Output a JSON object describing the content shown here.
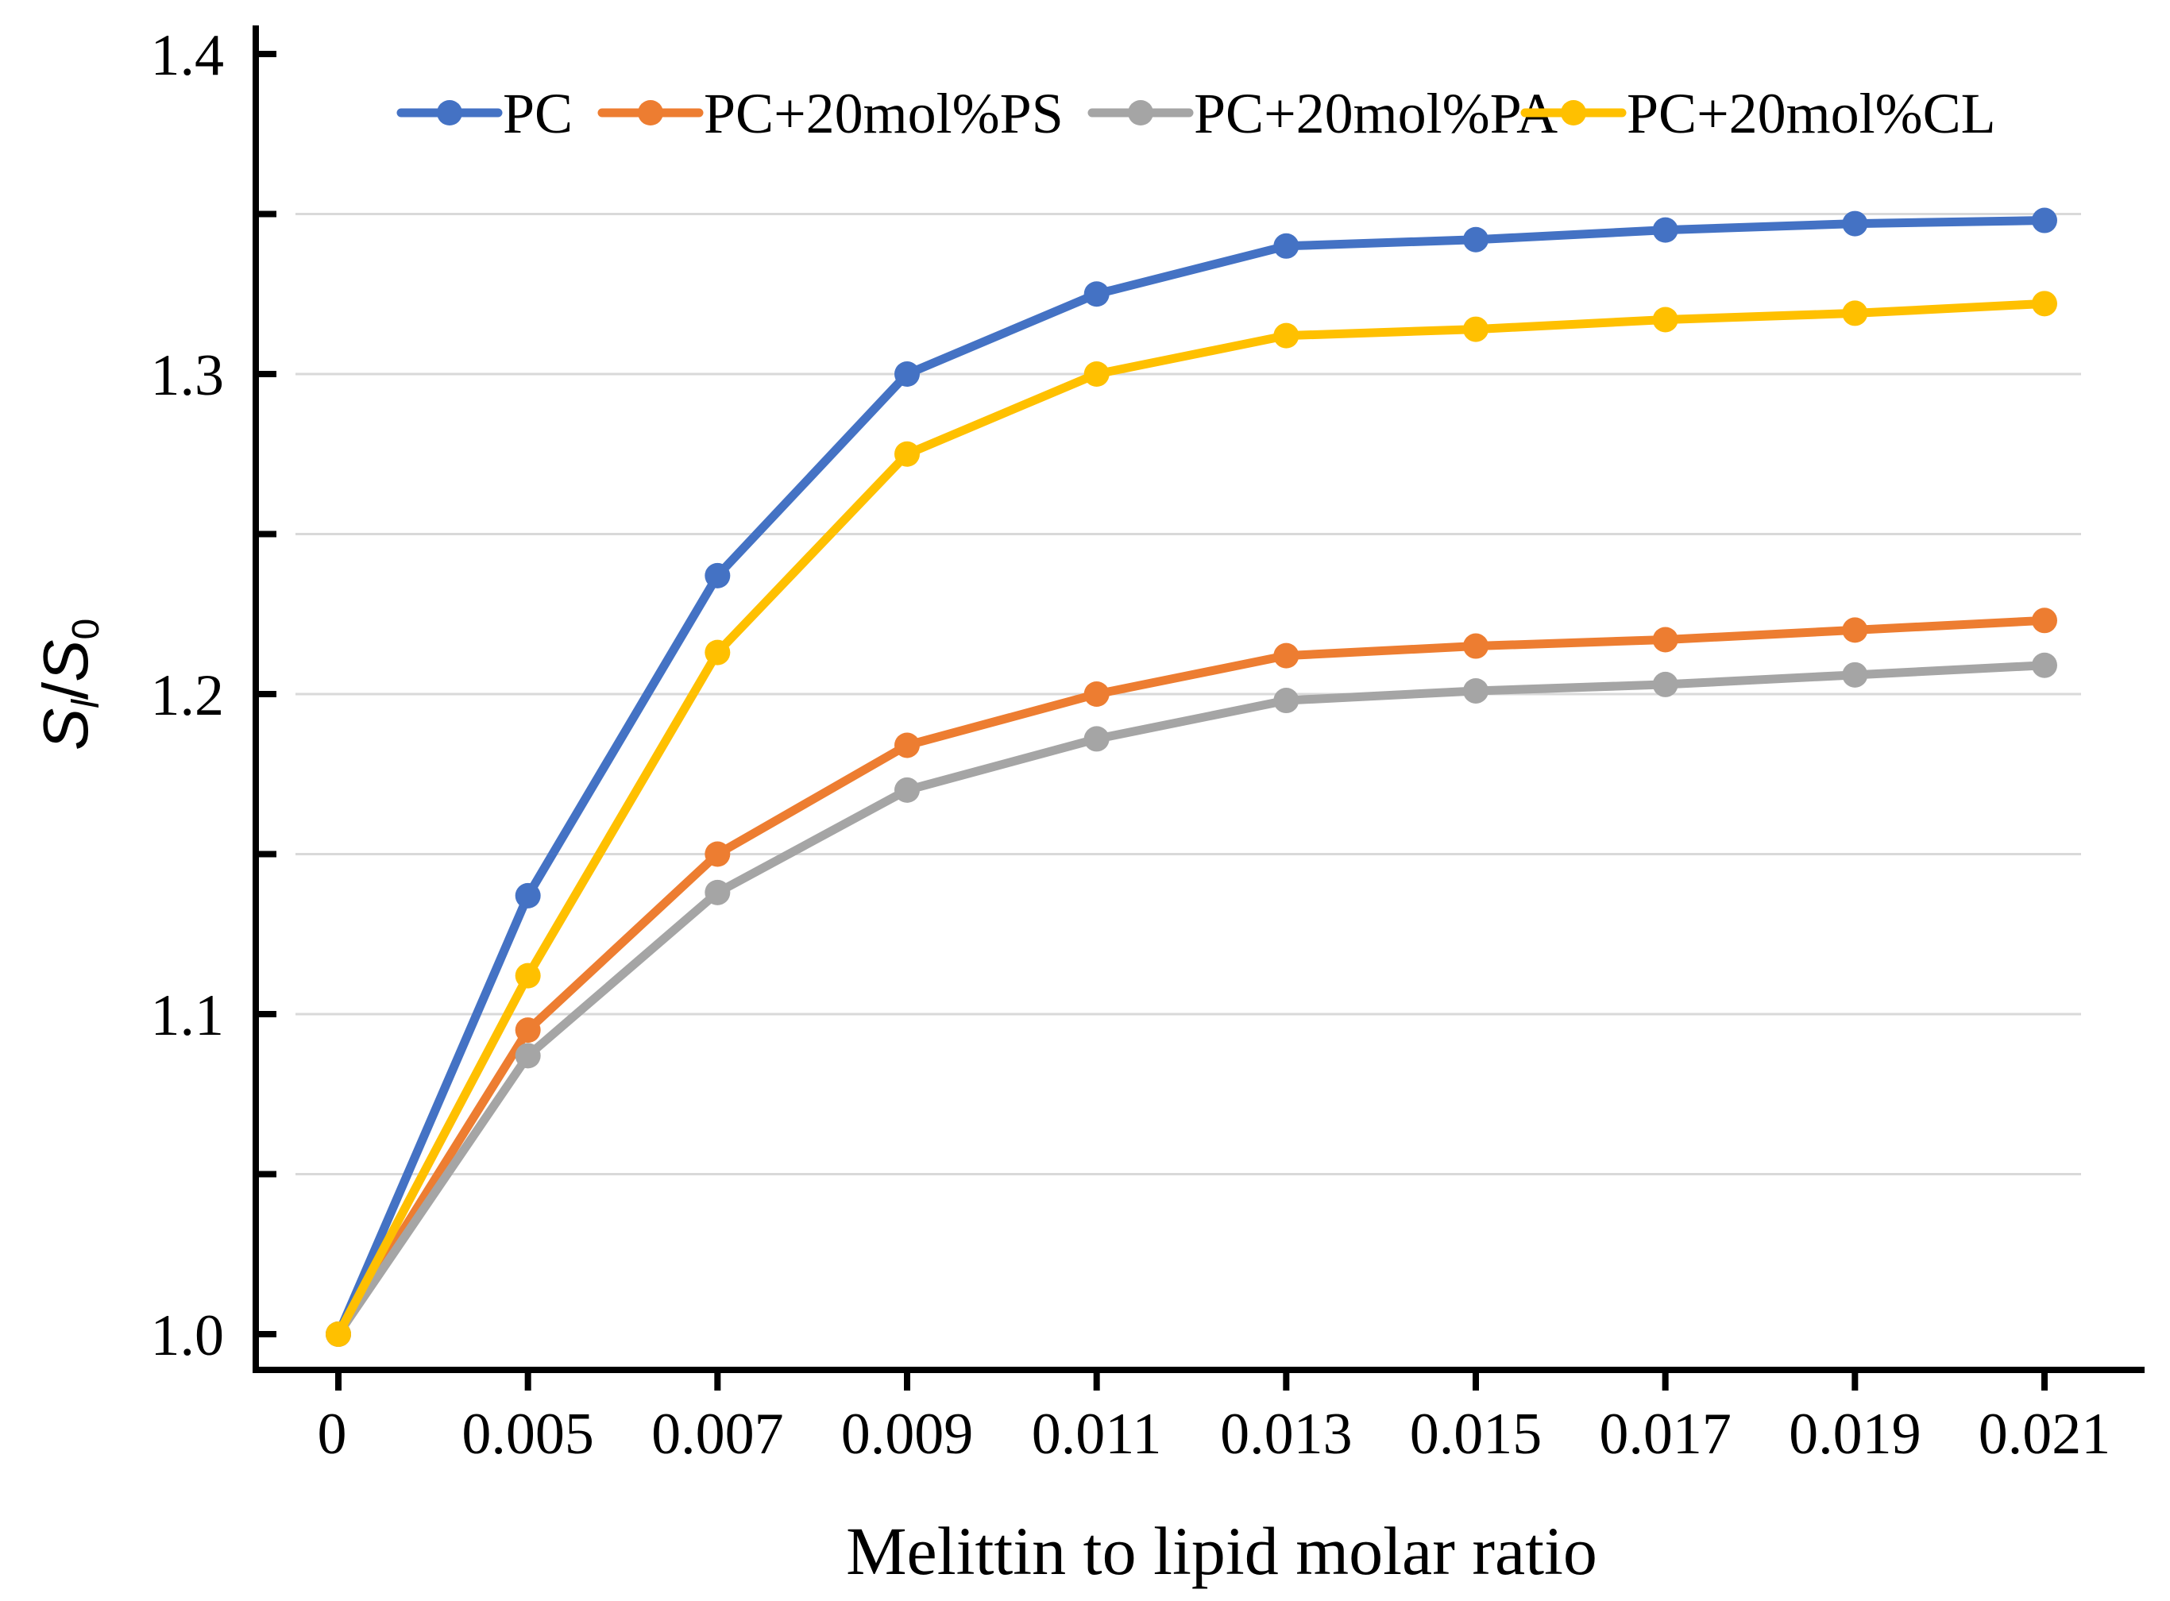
{
  "chart_data": {
    "type": "line",
    "title": "",
    "xlabel": "Melittin to lipid molar ratio",
    "ylabel": {
      "main": "S",
      "sub1": "l",
      "sep": "/",
      "main2": "S",
      "sub2": "0"
    },
    "categories": [
      "0",
      "0.005",
      "0.007",
      "0.009",
      "0.011",
      "0.013",
      "0.015",
      "0.017",
      "0.019",
      "0.021"
    ],
    "ylim": [
      1.0,
      1.4
    ],
    "yticks": [
      {
        "value": 1.0,
        "label": "1.0"
      },
      {
        "value": 1.05,
        "label": ""
      },
      {
        "value": 1.1,
        "label": "1.1"
      },
      {
        "value": 1.15,
        "label": ""
      },
      {
        "value": 1.2,
        "label": "1.2"
      },
      {
        "value": 1.25,
        "label": ""
      },
      {
        "value": 1.3,
        "label": "1.3"
      },
      {
        "value": 1.35,
        "label": ""
      },
      {
        "value": 1.4,
        "label": "1.4"
      }
    ],
    "gridlines": [
      1.05,
      1.1,
      1.15,
      1.2,
      1.25,
      1.3,
      1.35
    ],
    "legend_position": "top",
    "series": [
      {
        "name": "PC",
        "color": "#4472C4",
        "values": [
          1.0,
          1.137,
          1.237,
          1.3,
          1.325,
          1.34,
          1.342,
          1.345,
          1.347,
          1.348
        ]
      },
      {
        "name": "PC+20mol%PS",
        "color": "#ED7D31",
        "values": [
          1.0,
          1.095,
          1.15,
          1.184,
          1.2,
          1.212,
          1.215,
          1.217,
          1.22,
          1.223
        ]
      },
      {
        "name": "PC+20mol%PA",
        "color": "#A5A5A5",
        "values": [
          1.0,
          1.087,
          1.138,
          1.17,
          1.186,
          1.198,
          1.201,
          1.203,
          1.206,
          1.209
        ]
      },
      {
        "name": "PC+20mol%CL",
        "color": "#FFC000",
        "values": [
          1.0,
          1.112,
          1.213,
          1.275,
          1.3,
          1.312,
          1.314,
          1.317,
          1.319,
          1.322
        ]
      }
    ]
  }
}
